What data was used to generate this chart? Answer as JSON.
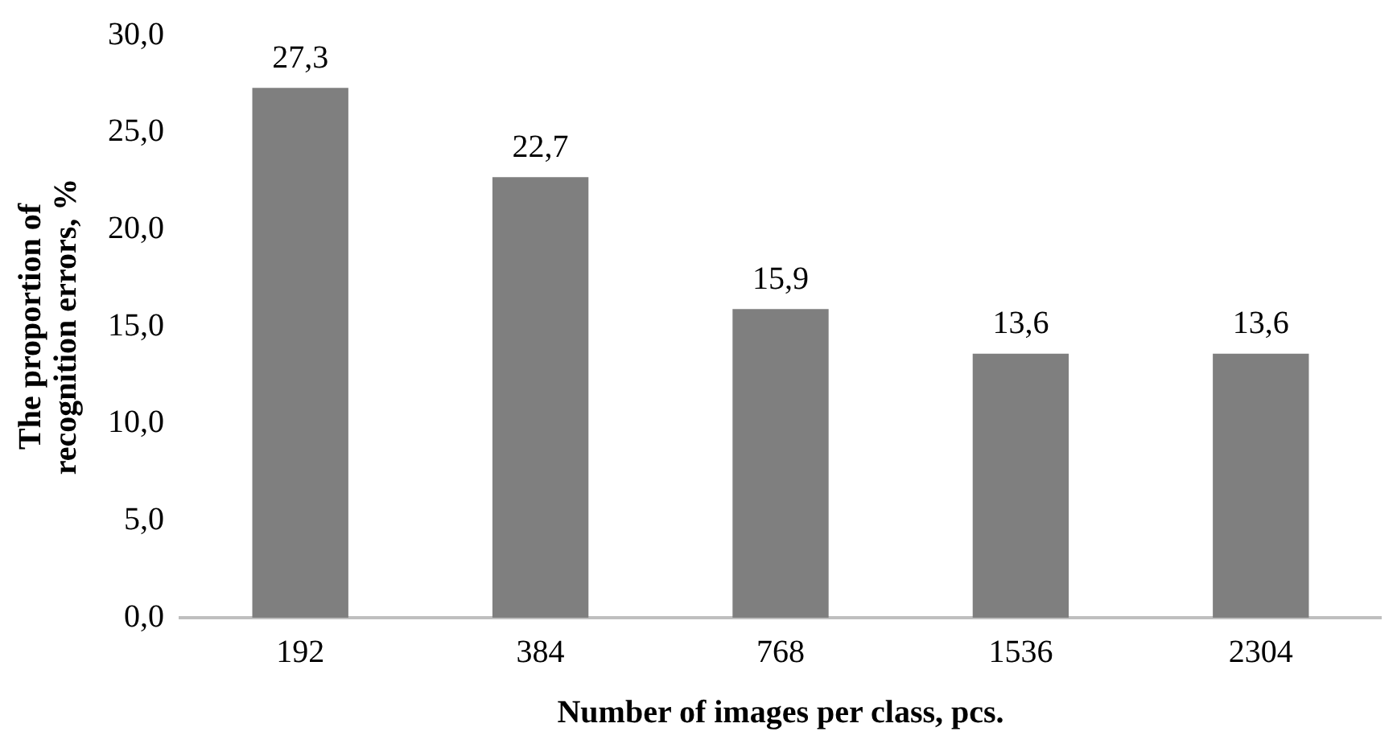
{
  "chart_data": {
    "type": "bar",
    "xlabel": "Number of images per class, pcs.",
    "ylabel": "The proportion of\nrecognition errors, %",
    "categories": [
      "192",
      "384",
      "768",
      "1536",
      "2304"
    ],
    "values": [
      27.3,
      22.7,
      15.9,
      13.6,
      13.6
    ],
    "value_labels": [
      "27,3",
      "22,7",
      "15,9",
      "13,6",
      "13,6"
    ],
    "color": "#7f7f7f",
    "ylim": [
      0,
      30
    ],
    "yticks": [
      {
        "value": 0,
        "label": "0,0"
      },
      {
        "value": 5,
        "label": "5,0"
      },
      {
        "value": 10,
        "label": "10,0"
      },
      {
        "value": 15,
        "label": "15,0"
      },
      {
        "value": 20,
        "label": "20,0"
      },
      {
        "value": 25,
        "label": "25,0"
      },
      {
        "value": 30,
        "label": "30,0"
      }
    ],
    "grid": false,
    "legend": false
  }
}
